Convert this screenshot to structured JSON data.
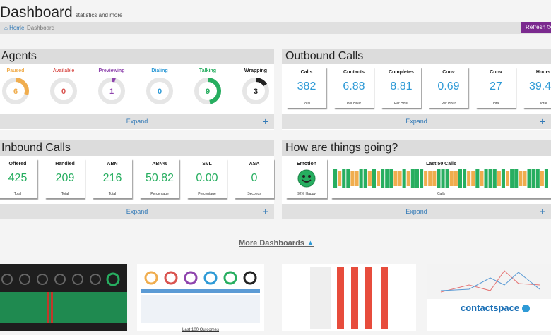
{
  "page": {
    "title": "Dashboard",
    "subtitle": "statistics and more"
  },
  "breadcrumb": {
    "home": "Home",
    "current": "Dashboard",
    "sep": "/"
  },
  "refresh": {
    "label": "Refresh"
  },
  "agents": {
    "title": "Agents",
    "expand": "Expand",
    "items": [
      {
        "label": "Paused",
        "value": "6",
        "color": "#f0ad4e",
        "frac": 0.3
      },
      {
        "label": "Available",
        "value": "0",
        "color": "#d9534f",
        "frac": 0
      },
      {
        "label": "Previewing",
        "value": "1",
        "color": "#8e44ad",
        "frac": 0.05
      },
      {
        "label": "Dialing",
        "value": "0",
        "color": "#2e9ad6",
        "frac": 0
      },
      {
        "label": "Talking",
        "value": "9",
        "color": "#27ae60",
        "frac": 0.47
      },
      {
        "label": "Wrapping",
        "value": "3",
        "color": "#222222",
        "frac": 0.16
      }
    ]
  },
  "outbound": {
    "title": "Outbound Calls",
    "expand": "Expand",
    "cards": [
      {
        "label": "Calls",
        "value": "382",
        "sub": "Total"
      },
      {
        "label": "Contacts",
        "value": "6.88",
        "sub": "Per Hour"
      },
      {
        "label": "Completes",
        "value": "8.81",
        "sub": "Per Hour"
      },
      {
        "label": "Conv",
        "value": "0.69",
        "sub": "Per Hour"
      },
      {
        "label": "Conv",
        "value": "27",
        "sub": "Total"
      },
      {
        "label": "Hours",
        "value": "39.40",
        "sub": "Total"
      }
    ]
  },
  "inbound": {
    "title": "Inbound Calls",
    "expand": "Expand",
    "cards": [
      {
        "label": "Offered",
        "value": "425",
        "sub": "Total"
      },
      {
        "label": "Handled",
        "value": "209",
        "sub": "Total"
      },
      {
        "label": "ABN",
        "value": "216",
        "sub": "Total"
      },
      {
        "label": "ABN%",
        "value": "50.82",
        "sub": "Percentage"
      },
      {
        "label": "SVL",
        "value": "0.00",
        "sub": "Percentage"
      },
      {
        "label": "ASA",
        "value": "0",
        "sub": "Seconds"
      }
    ]
  },
  "going": {
    "title": "How are things going?",
    "expand": "Expand",
    "emotion": {
      "label": "Emotion",
      "sub": "92% Happy"
    },
    "calls": {
      "label": "Last 50 Calls",
      "sub": "Calls",
      "pattern": "GOGGOOGGOGOGGGOOGOGGGOOOGGGOOGGOOGOGGGOGOGGOOGGGOG"
    }
  },
  "more": {
    "label": "More Dashboards",
    "thumb2_caption": "Last 100 Outcomes",
    "brand": "contactspace"
  },
  "colors": {
    "green": "#27ae60",
    "orange": "#f0ad4e",
    "blue": "#2e9ad6",
    "purple": "#7b2a8f"
  }
}
